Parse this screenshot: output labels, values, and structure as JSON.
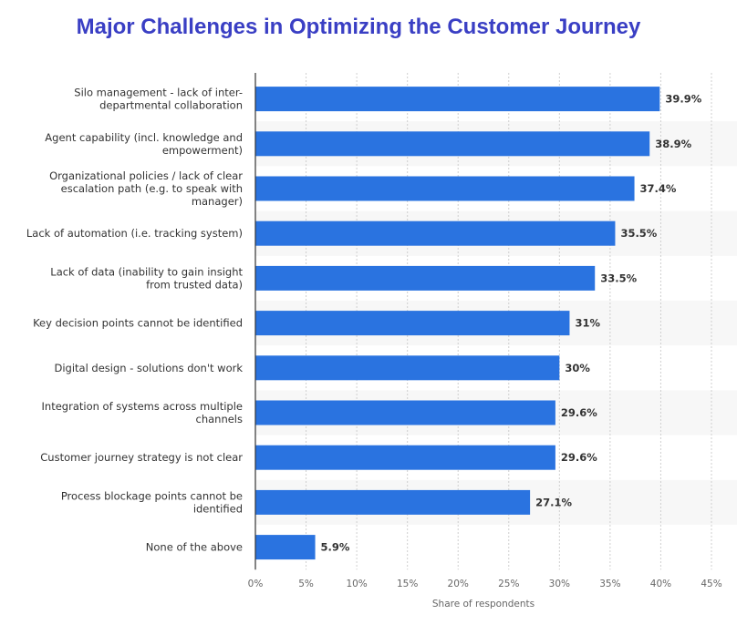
{
  "chart_data": {
    "type": "bar",
    "orientation": "horizontal",
    "title": "Major Challenges in Optimizing the Customer Journey",
    "xlabel": "Share of respondents",
    "ylabel": "",
    "xlim": [
      0,
      45
    ],
    "ticks": [
      "0%",
      "5%",
      "10%",
      "15%",
      "20%",
      "25%",
      "30%",
      "35%",
      "40%",
      "45%"
    ],
    "bar_color": "#2a73e0",
    "grid": true,
    "categories": [
      [
        "Silo management - lack of inter-",
        "departmental collaboration"
      ],
      [
        "Agent capability (incl. knowledge and",
        "empowerment)"
      ],
      [
        "Organizational policies / lack of clear",
        "escalation path (e.g. to speak with",
        "manager)"
      ],
      [
        "Lack of automation (i.e. tracking system)"
      ],
      [
        "Lack of data (inability to gain insight",
        "from trusted data)"
      ],
      [
        "Key decision points cannot be identified"
      ],
      [
        "Digital design - solutions don't work"
      ],
      [
        "Integration of systems across multiple",
        "channels"
      ],
      [
        "Customer journey strategy is not clear"
      ],
      [
        "Process blockage points cannot be",
        "identified"
      ],
      [
        "None of the above"
      ]
    ],
    "values": [
      39.9,
      38.9,
      37.4,
      35.5,
      33.5,
      31,
      30,
      29.6,
      29.6,
      27.1,
      5.9
    ],
    "value_labels": [
      "39.9%",
      "38.9%",
      "37.4%",
      "35.5%",
      "33.5%",
      "31%",
      "30%",
      "29.6%",
      "29.6%",
      "27.1%",
      "5.9%"
    ]
  }
}
